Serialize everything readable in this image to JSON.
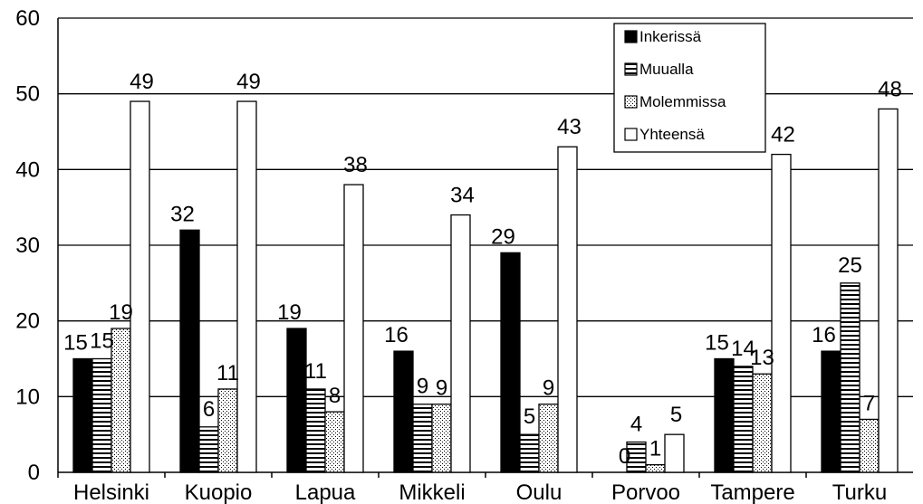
{
  "chart_data": {
    "type": "bar",
    "categories": [
      "Helsinki",
      "Kuopio",
      "Lapua",
      "Mikkeli",
      "Oulu",
      "Porvoo",
      "Tampere",
      "Turku"
    ],
    "series": [
      {
        "name": "Inkerissä",
        "values": [
          15,
          32,
          19,
          16,
          29,
          0,
          15,
          16
        ],
        "pattern": "solid-black"
      },
      {
        "name": "Muualla",
        "values": [
          15,
          6,
          11,
          9,
          5,
          4,
          14,
          25
        ],
        "pattern": "horizontal-lines"
      },
      {
        "name": "Molemmissa",
        "values": [
          19,
          11,
          8,
          9,
          9,
          1,
          13,
          7
        ],
        "pattern": "dots"
      },
      {
        "name": "Yhteensä",
        "values": [
          49,
          49,
          38,
          34,
          43,
          5,
          42,
          48
        ],
        "pattern": "white"
      }
    ],
    "ylim": [
      0,
      60
    ],
    "yticks": [
      0,
      10,
      20,
      30,
      40,
      50,
      60
    ],
    "grid": "horizontal",
    "legend_position": "top-right",
    "colors": {
      "fill_solid": "#000000",
      "fill_white": "#ffffff",
      "stroke": "#000000",
      "grid": "#000000"
    }
  }
}
